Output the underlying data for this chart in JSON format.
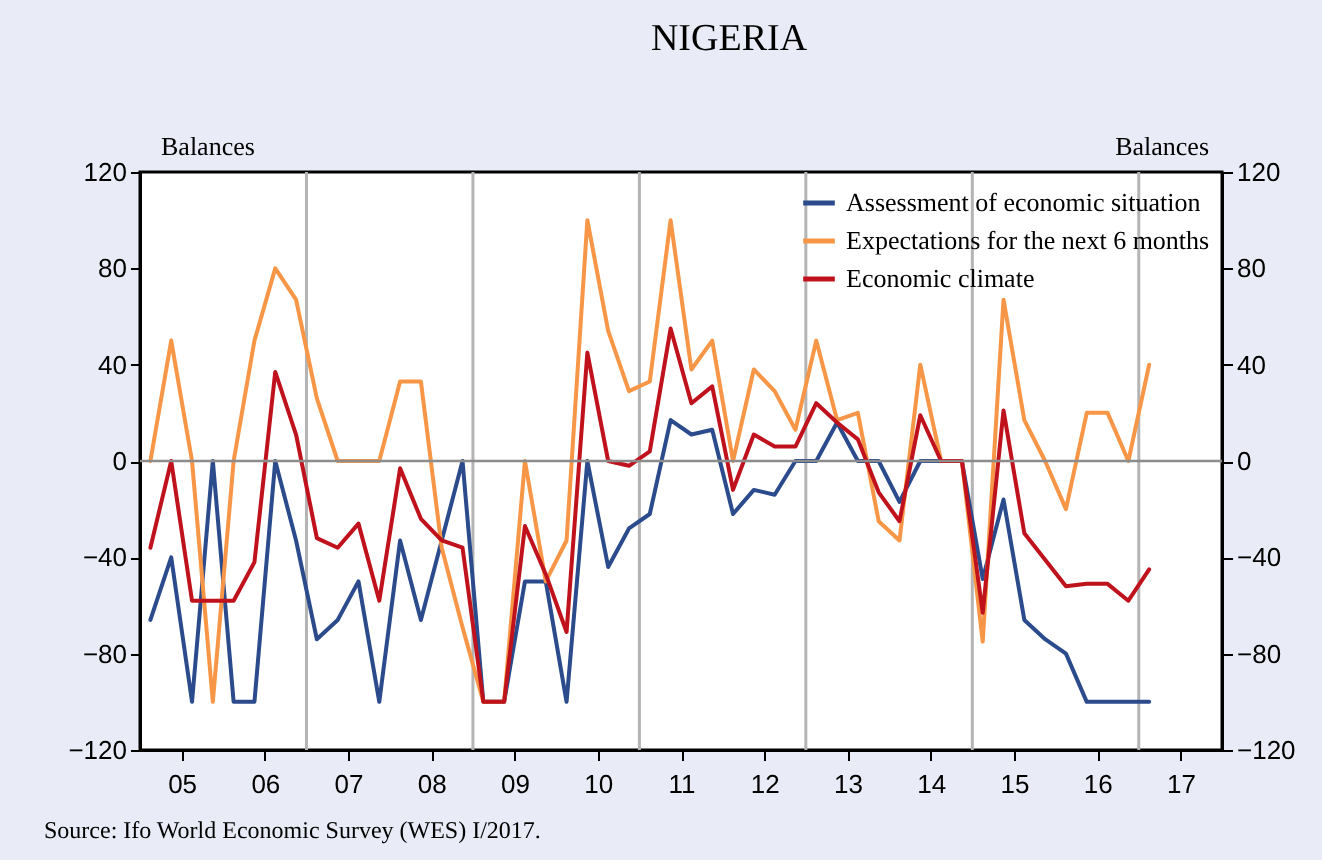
{
  "chart_data": {
    "type": "line",
    "title": "NIGERIA",
    "ylabel": "Balances",
    "y2label": "Balances",
    "annotations": [
      "Source: Ifo World Economic Survey (WES) I/2017."
    ],
    "x": [
      2004.625,
      2004.875,
      2005.125,
      2005.375,
      2005.625,
      2005.875,
      2006.125,
      2006.375,
      2006.625,
      2006.875,
      2007.125,
      2007.375,
      2007.625,
      2007.875,
      2008.125,
      2008.375,
      2008.625,
      2008.875,
      2009.125,
      2009.375,
      2009.625,
      2009.875,
      2010.125,
      2010.375,
      2010.625,
      2010.875,
      2011.125,
      2011.375,
      2011.625,
      2011.875,
      2012.125,
      2012.375,
      2012.625,
      2012.875,
      2013.125,
      2013.375,
      2013.625,
      2013.875,
      2014.125,
      2014.375,
      2014.625,
      2014.875,
      2015.125,
      2015.375,
      2015.625,
      2015.875,
      2016.125,
      2016.375,
      2016.625
    ],
    "series": [
      {
        "name": "Assessment of economic situation",
        "color": "#2b4b8c",
        "values": [
          -66,
          -40,
          -100,
          0,
          -100,
          -100,
          0,
          -33,
          -74,
          -66,
          -50,
          -100,
          -33,
          -66,
          -33,
          0,
          -100,
          -100,
          -50,
          -50,
          -100,
          0,
          -44,
          -28,
          -22,
          17,
          11,
          13,
          -22,
          -12,
          -14,
          0,
          0,
          16,
          0,
          0,
          -17,
          0,
          0,
          0,
          -49,
          -16,
          -66,
          -74,
          -80,
          -100,
          -100,
          -100,
          -100
        ]
      },
      {
        "name": "Expectations for the next 6 months",
        "color": "#f79646",
        "values": [
          0,
          50,
          0,
          -100,
          0,
          50,
          80,
          67,
          26,
          0,
          0,
          0,
          33,
          33,
          -36,
          -69,
          -100,
          -100,
          0,
          -50,
          -33,
          100,
          54,
          29,
          33,
          100,
          38,
          50,
          0,
          38,
          29,
          13,
          50,
          17,
          20,
          -25,
          -33,
          40,
          0,
          0,
          -75,
          67,
          17,
          0,
          -20,
          20,
          20,
          0,
          40
        ]
      },
      {
        "name": "Economic climate",
        "color": "#c0121c",
        "values": [
          -36,
          0,
          -58,
          -58,
          -58,
          -42,
          37,
          11,
          -32,
          -36,
          -26,
          -58,
          -3,
          -24,
          -33,
          -36,
          -100,
          -100,
          -27,
          -47,
          -71,
          45,
          0,
          -2,
          4,
          55,
          24,
          31,
          -12,
          11,
          6,
          6,
          24,
          16,
          9,
          -13,
          -25,
          19,
          0,
          0,
          -63,
          21,
          -30,
          -41,
          -52,
          -51,
          -51,
          -58,
          -45
        ]
      }
    ],
    "xlim": [
      2004.5,
      2017.5
    ],
    "xticks": [
      {
        "value": 2005,
        "label": "05"
      },
      {
        "value": 2006,
        "label": "06"
      },
      {
        "value": 2007,
        "label": "07"
      },
      {
        "value": 2008,
        "label": "08"
      },
      {
        "value": 2009,
        "label": "09"
      },
      {
        "value": 2010,
        "label": "10"
      },
      {
        "value": 2011,
        "label": "11"
      },
      {
        "value": 2012,
        "label": "12"
      },
      {
        "value": 2013,
        "label": "13"
      },
      {
        "value": 2014,
        "label": "14"
      },
      {
        "value": 2015,
        "label": "15"
      },
      {
        "value": 2016,
        "label": "16"
      },
      {
        "value": 2017,
        "label": "17"
      }
    ],
    "ylim": [
      -120,
      120
    ],
    "yticks": [
      -120,
      -80,
      -40,
      0,
      40,
      80,
      120
    ],
    "y2lim": [
      -120,
      120
    ],
    "y2ticks": [
      -120,
      -80,
      -40,
      0,
      40,
      80,
      120
    ],
    "ref_lines": [
      {
        "axis": "y",
        "value": 0,
        "color": "#8c8c8c"
      },
      {
        "axis": "x",
        "value": 2006.5,
        "color": "#b4b4b4"
      },
      {
        "axis": "x",
        "value": 2008.5,
        "color": "#b4b4b4"
      },
      {
        "axis": "x",
        "value": 2010.5,
        "color": "#b4b4b4"
      },
      {
        "axis": "x",
        "value": 2012.5,
        "color": "#b4b4b4"
      },
      {
        "axis": "x",
        "value": 2014.5,
        "color": "#b4b4b4"
      },
      {
        "axis": "x",
        "value": 2016.5,
        "color": "#b4b4b4"
      }
    ],
    "legend": "top right",
    "marker": "none",
    "line_style": "solid"
  }
}
